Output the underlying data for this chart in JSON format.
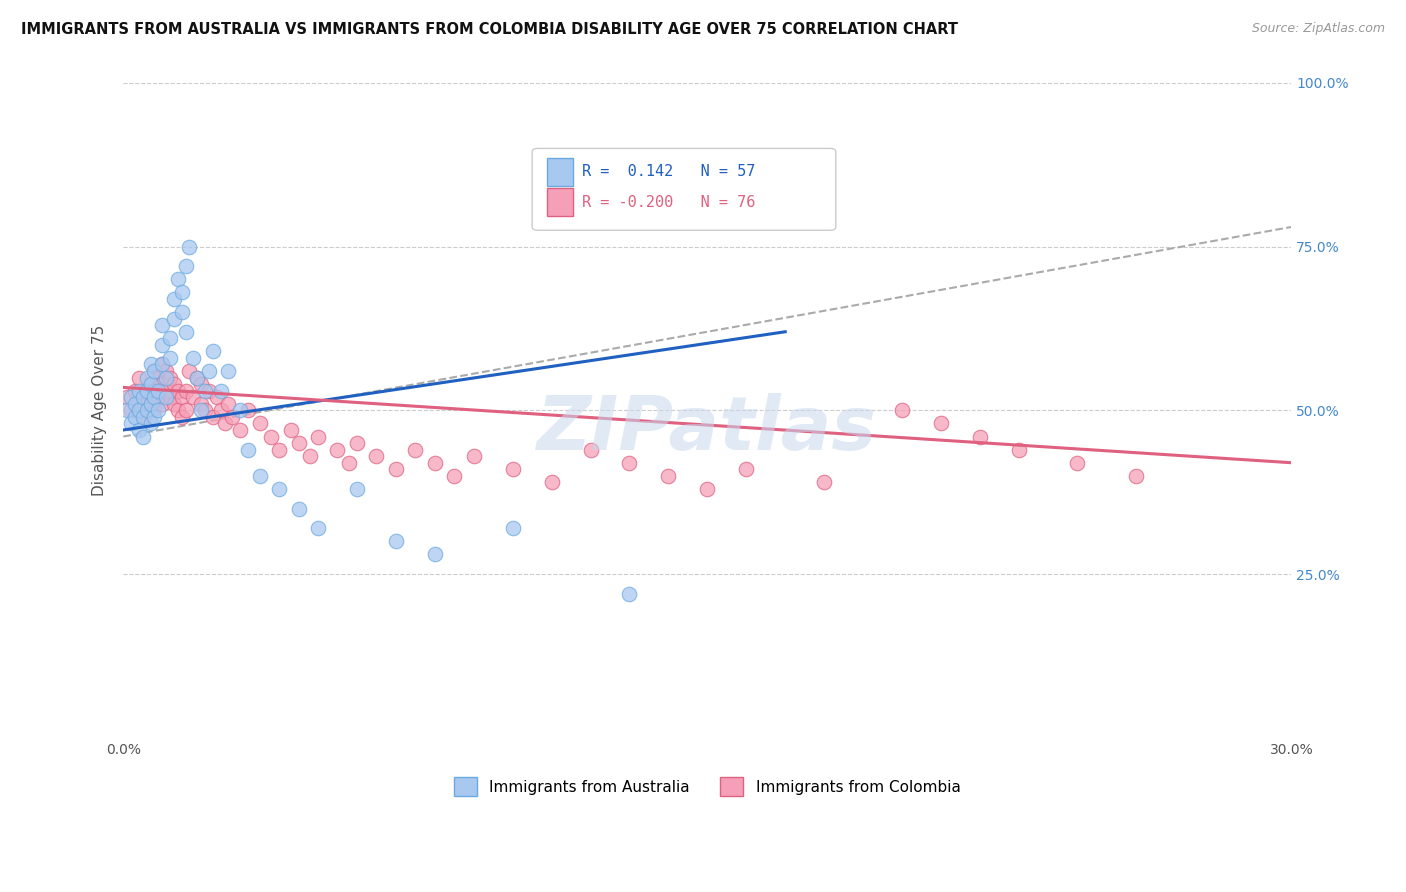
{
  "title": "IMMIGRANTS FROM AUSTRALIA VS IMMIGRANTS FROM COLOMBIA DISABILITY AGE OVER 75 CORRELATION CHART",
  "source": "Source: ZipAtlas.com",
  "ylabel": "Disability Age Over 75",
  "xlim": [
    0.0,
    0.3
  ],
  "ylim": [
    0.0,
    1.0
  ],
  "xticks": [
    0.0,
    0.05,
    0.1,
    0.15,
    0.2,
    0.25,
    0.3
  ],
  "xticklabels": [
    "0.0%",
    "",
    "",
    "",
    "",
    "",
    "30.0%"
  ],
  "yticks": [
    0.0,
    0.25,
    0.5,
    0.75,
    1.0
  ],
  "yticklabels": [
    "",
    "25.0%",
    "50.0%",
    "75.0%",
    "100.0%"
  ],
  "legend_labels": [
    "Immigrants from Australia",
    "Immigrants from Colombia"
  ],
  "R_australia": 0.142,
  "N_australia": 57,
  "R_colombia": -0.2,
  "N_colombia": 76,
  "color_australia": "#a8c8f0",
  "color_colombia": "#f5a0b8",
  "color_trend_australia": "#2060c0",
  "color_trend_colombia": "#e06080",
  "color_trend_dashed": "#aaaaaa",
  "watermark": "ZIPatlas",
  "australia_x": [
    0.001,
    0.002,
    0.002,
    0.003,
    0.003,
    0.004,
    0.004,
    0.004,
    0.005,
    0.005,
    0.005,
    0.006,
    0.006,
    0.006,
    0.007,
    0.007,
    0.007,
    0.007,
    0.008,
    0.008,
    0.008,
    0.009,
    0.009,
    0.01,
    0.01,
    0.01,
    0.011,
    0.011,
    0.012,
    0.012,
    0.013,
    0.013,
    0.014,
    0.015,
    0.015,
    0.016,
    0.016,
    0.017,
    0.018,
    0.019,
    0.02,
    0.021,
    0.022,
    0.023,
    0.025,
    0.027,
    0.03,
    0.032,
    0.035,
    0.04,
    0.045,
    0.05,
    0.06,
    0.07,
    0.08,
    0.1,
    0.13
  ],
  "australia_y": [
    0.5,
    0.48,
    0.52,
    0.49,
    0.51,
    0.47,
    0.5,
    0.53,
    0.46,
    0.49,
    0.52,
    0.5,
    0.53,
    0.55,
    0.48,
    0.51,
    0.54,
    0.57,
    0.49,
    0.52,
    0.56,
    0.5,
    0.53,
    0.57,
    0.6,
    0.63,
    0.52,
    0.55,
    0.58,
    0.61,
    0.64,
    0.67,
    0.7,
    0.65,
    0.68,
    0.62,
    0.72,
    0.75,
    0.58,
    0.55,
    0.5,
    0.53,
    0.56,
    0.59,
    0.53,
    0.56,
    0.5,
    0.44,
    0.4,
    0.38,
    0.35,
    0.32,
    0.38,
    0.3,
    0.28,
    0.32,
    0.22
  ],
  "colombia_x": [
    0.001,
    0.002,
    0.003,
    0.004,
    0.004,
    0.005,
    0.005,
    0.006,
    0.006,
    0.007,
    0.007,
    0.008,
    0.008,
    0.008,
    0.009,
    0.009,
    0.01,
    0.01,
    0.01,
    0.011,
    0.011,
    0.012,
    0.012,
    0.013,
    0.013,
    0.014,
    0.014,
    0.015,
    0.015,
    0.016,
    0.016,
    0.017,
    0.018,
    0.019,
    0.02,
    0.02,
    0.021,
    0.022,
    0.023,
    0.024,
    0.025,
    0.026,
    0.027,
    0.028,
    0.03,
    0.032,
    0.035,
    0.038,
    0.04,
    0.043,
    0.045,
    0.048,
    0.05,
    0.055,
    0.058,
    0.06,
    0.065,
    0.07,
    0.075,
    0.08,
    0.085,
    0.09,
    0.1,
    0.11,
    0.12,
    0.13,
    0.14,
    0.15,
    0.16,
    0.18,
    0.2,
    0.21,
    0.22,
    0.23,
    0.245,
    0.26
  ],
  "colombia_y": [
    0.52,
    0.5,
    0.53,
    0.51,
    0.55,
    0.49,
    0.52,
    0.5,
    0.53,
    0.51,
    0.54,
    0.5,
    0.53,
    0.56,
    0.52,
    0.55,
    0.51,
    0.54,
    0.57,
    0.53,
    0.56,
    0.52,
    0.55,
    0.51,
    0.54,
    0.5,
    0.53,
    0.49,
    0.52,
    0.5,
    0.53,
    0.56,
    0.52,
    0.55,
    0.51,
    0.54,
    0.5,
    0.53,
    0.49,
    0.52,
    0.5,
    0.48,
    0.51,
    0.49,
    0.47,
    0.5,
    0.48,
    0.46,
    0.44,
    0.47,
    0.45,
    0.43,
    0.46,
    0.44,
    0.42,
    0.45,
    0.43,
    0.41,
    0.44,
    0.42,
    0.4,
    0.43,
    0.41,
    0.39,
    0.44,
    0.42,
    0.4,
    0.38,
    0.41,
    0.39,
    0.5,
    0.48,
    0.46,
    0.44,
    0.42,
    0.4
  ],
  "aus_trend_x": [
    0.0,
    0.17
  ],
  "aus_trend_y": [
    0.47,
    0.62
  ],
  "col_trend_x": [
    0.0,
    0.3
  ],
  "col_trend_y": [
    0.535,
    0.42
  ],
  "dash_trend_x": [
    0.0,
    0.3
  ],
  "dash_trend_y": [
    0.46,
    0.78
  ]
}
